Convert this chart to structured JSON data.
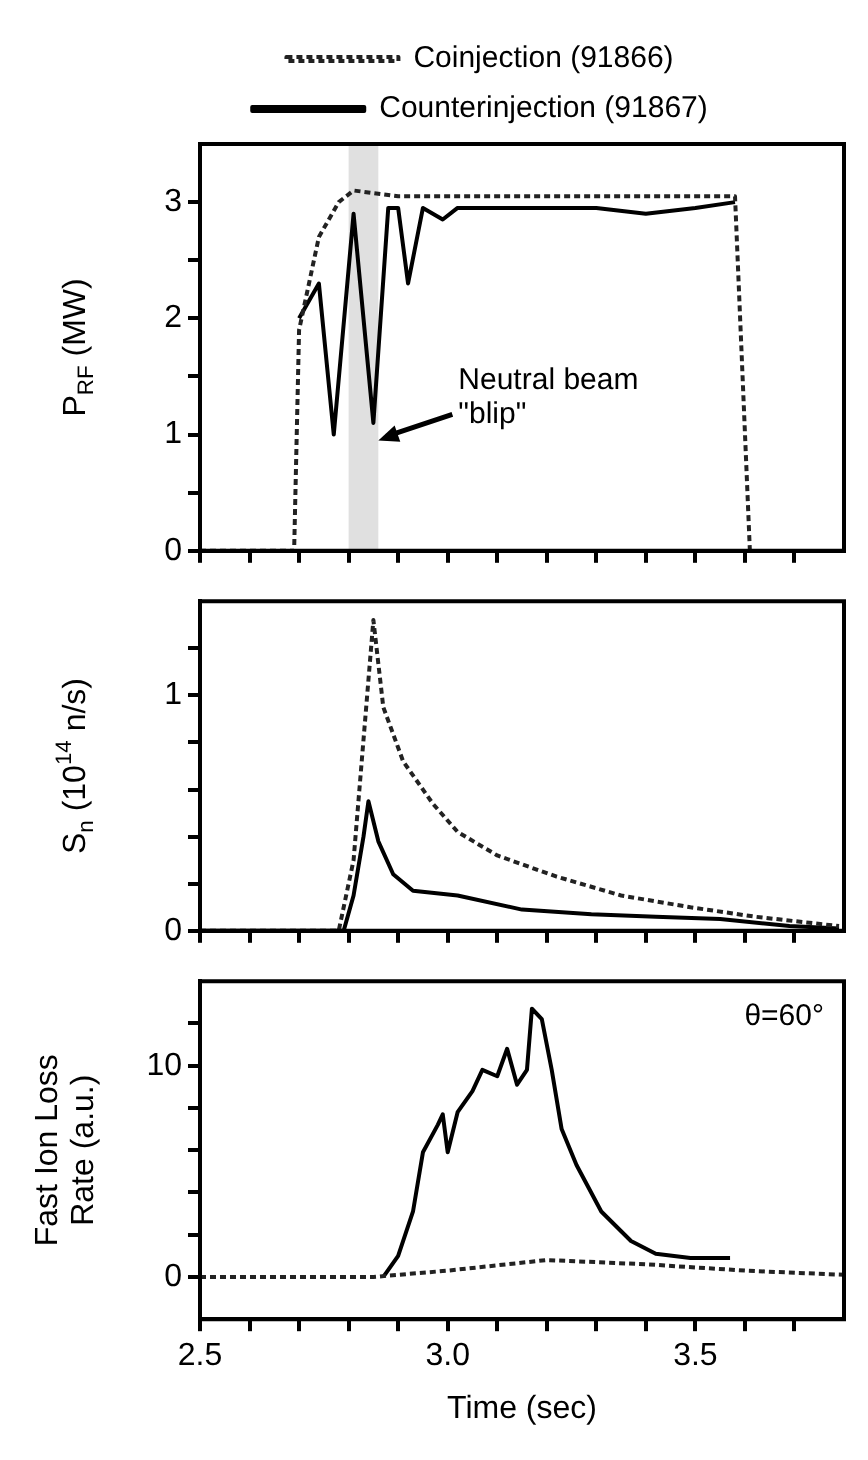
{
  "chart_data": [
    {
      "type": "line",
      "ylabel": "P$_{RF}$ (MW)",
      "legend": "top",
      "marker": "none",
      "tick_labels": "y",
      "xlim": [
        2.5,
        3.8
      ],
      "xticks": [
        {
          "value": 2.5,
          "label": null
        },
        {
          "value": 2.6,
          "label": null
        },
        {
          "value": 2.7,
          "label": null
        },
        {
          "value": 2.8,
          "label": null
        },
        {
          "value": 2.9,
          "label": null
        },
        {
          "value": 3.0,
          "label": null
        },
        {
          "value": 3.1,
          "label": null
        },
        {
          "value": 3.2,
          "label": null
        },
        {
          "value": 3.3,
          "label": null
        },
        {
          "value": 3.4,
          "label": null
        },
        {
          "value": 3.5,
          "label": null
        },
        {
          "value": 3.6,
          "label": null
        },
        {
          "value": 3.7,
          "label": null
        }
      ],
      "ylim": [
        0,
        3.5
      ],
      "yticks": [
        0,
        {
          "value": 0.5,
          "label": null
        },
        1,
        {
          "value": 1.5,
          "label": null
        },
        2,
        {
          "value": 2.5,
          "label": null
        },
        3
      ],
      "bands": [
        {
          "axis": "x",
          "from": 2.8,
          "to": 2.86,
          "color": "#e0e0e0"
        }
      ],
      "annotations": [
        {
          "text": "Neutral beam \"blip\"",
          "x": 2.86,
          "y": 0.95
        }
      ],
      "series": [
        {
          "name": "Coinjection (91866)",
          "color": "#222222",
          "line_style": "dashed",
          "x": [
            2.5,
            2.69,
            2.7,
            2.74,
            2.78,
            2.81,
            2.9,
            3.0,
            3.1,
            3.2,
            3.3,
            3.4,
            3.5,
            3.58,
            3.61
          ],
          "values": [
            0,
            0,
            1.9,
            2.7,
            3.0,
            3.1,
            3.05,
            3.05,
            3.05,
            3.05,
            3.05,
            3.05,
            3.05,
            3.05,
            0
          ]
        },
        {
          "name": "Counterinjection (91867)",
          "color": "#000000",
          "line_style": "solid",
          "x": [
            2.7,
            2.74,
            2.77,
            2.81,
            2.85,
            2.88,
            2.9,
            2.92,
            2.95,
            2.99,
            3.02,
            3.1,
            3.2,
            3.3,
            3.4,
            3.5,
            3.58
          ],
          "values": [
            2.0,
            2.3,
            1.0,
            2.9,
            1.1,
            2.95,
            2.95,
            2.3,
            2.95,
            2.85,
            2.95,
            2.95,
            2.95,
            2.95,
            2.9,
            2.95,
            3.0
          ]
        }
      ]
    },
    {
      "type": "line",
      "ylabel": "S$_{n}$ (10$^{14}$ n/s)",
      "marker": "none",
      "tick_labels": "y",
      "xlim": [
        2.5,
        3.8
      ],
      "xticks": [
        {
          "value": 2.5,
          "label": null
        },
        {
          "value": 2.6,
          "label": null
        },
        {
          "value": 2.7,
          "label": null
        },
        {
          "value": 2.8,
          "label": null
        },
        {
          "value": 2.9,
          "label": null
        },
        {
          "value": 3.0,
          "label": null
        },
        {
          "value": 3.1,
          "label": null
        },
        {
          "value": 3.2,
          "label": null
        },
        {
          "value": 3.3,
          "label": null
        },
        {
          "value": 3.4,
          "label": null
        },
        {
          "value": 3.5,
          "label": null
        },
        {
          "value": 3.6,
          "label": null
        },
        {
          "value": 3.7,
          "label": null
        }
      ],
      "ylim": [
        0,
        1.4
      ],
      "yticks": [
        0,
        {
          "value": 0.2,
          "label": null
        },
        {
          "value": 0.4,
          "label": null
        },
        {
          "value": 0.6,
          "label": null
        },
        {
          "value": 0.8,
          "label": null
        },
        1,
        {
          "value": 1.2,
          "label": null
        }
      ],
      "series": [
        {
          "color": "#222222",
          "line_style": "dashed",
          "x": [
            2.5,
            2.78,
            2.81,
            2.85,
            2.87,
            2.91,
            2.97,
            3.02,
            3.1,
            3.22,
            3.35,
            3.49,
            3.62,
            3.79
          ],
          "values": [
            0,
            0,
            0.3,
            1.32,
            0.95,
            0.72,
            0.54,
            0.42,
            0.32,
            0.23,
            0.15,
            0.1,
            0.06,
            0.02
          ]
        },
        {
          "color": "#000000",
          "line_style": "solid",
          "x": [
            2.5,
            2.79,
            2.81,
            2.83,
            2.84,
            2.86,
            2.89,
            2.93,
            3.02,
            3.15,
            3.29,
            3.42,
            3.55,
            3.69,
            3.79
          ],
          "values": [
            0,
            0,
            0.15,
            0.4,
            0.55,
            0.38,
            0.24,
            0.17,
            0.15,
            0.09,
            0.07,
            0.06,
            0.05,
            0.02,
            0.01
          ]
        }
      ]
    },
    {
      "type": "line",
      "ylabel": "Fast Ion Loss\nRate (a.u.)",
      "xlabel": "Time (sec)",
      "marker": "none",
      "xlim": [
        2.5,
        3.8
      ],
      "xticks": [
        2.5,
        {
          "value": 2.6,
          "label": null
        },
        {
          "value": 2.7,
          "label": null
        },
        {
          "value": 2.8,
          "label": null
        },
        {
          "value": 2.9,
          "label": null
        },
        {
          "value": 3.0,
          "label": "3.0"
        },
        {
          "value": 3.1,
          "label": null
        },
        {
          "value": 3.2,
          "label": null
        },
        {
          "value": 3.3,
          "label": null
        },
        {
          "value": 3.4,
          "label": null
        },
        3.5,
        {
          "value": 3.6,
          "label": null
        },
        {
          "value": 3.7,
          "label": null
        }
      ],
      "ylim": [
        -2,
        14
      ],
      "yticks": [
        0,
        {
          "value": 2,
          "label": null
        },
        {
          "value": 4,
          "label": null
        },
        {
          "value": 6,
          "label": null
        },
        {
          "value": 8,
          "label": null
        },
        10,
        {
          "value": 12,
          "label": null
        }
      ],
      "annotations": [
        "θ=60°"
      ],
      "series": [
        {
          "color": "#222222",
          "line_style": "dashed",
          "x": [
            2.5,
            2.85,
            3.0,
            3.2,
            3.4,
            3.6,
            3.8
          ],
          "values": [
            0,
            0,
            0.3,
            0.8,
            0.6,
            0.3,
            0.1
          ]
        },
        {
          "color": "#000000",
          "line_style": "solid",
          "x": [
            2.87,
            2.9,
            2.93,
            2.95,
            2.98,
            2.99,
            3.0,
            3.02,
            3.05,
            3.07,
            3.1,
            3.12,
            3.14,
            3.16,
            3.17,
            3.19,
            3.21,
            3.23,
            3.26,
            3.31,
            3.37,
            3.42,
            3.49,
            3.57
          ],
          "values": [
            0,
            1.0,
            3.1,
            5.9,
            7.2,
            7.7,
            5.9,
            7.8,
            8.8,
            9.8,
            9.5,
            10.8,
            9.1,
            9.8,
            12.7,
            12.2,
            9.8,
            7.0,
            5.3,
            3.1,
            1.7,
            1.1,
            0.9,
            0.9
          ]
        }
      ]
    }
  ]
}
